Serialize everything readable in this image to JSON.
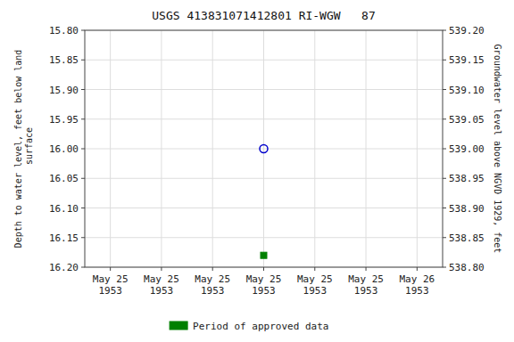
{
  "chart_data": {
    "type": "scatter",
    "title": "USGS 413831071412801 RI-WGW   87",
    "y_label": "Depth to water level, feet below land\n surface",
    "y2_label": "Groundwater level above NGVD 1929, feet",
    "categories": [
      "May 25\n1953",
      "May 25\n1953",
      "May 25\n1953",
      "May 25\n1953",
      "May 25\n1953",
      "May 25\n1953",
      "May 26\n1953"
    ],
    "series": [
      {
        "color": "#0000cc",
        "marker": "open-circle",
        "values": [
          null,
          null,
          null,
          16.0,
          null,
          null,
          null
        ]
      },
      {
        "name": "Period of approved data",
        "color": "#008000",
        "marker": "square",
        "values": [
          null,
          null,
          null,
          16.18,
          null,
          null,
          null
        ]
      }
    ],
    "ylim": [
      16.2,
      15.8
    ],
    "yticks": [
      {
        "value": 15.8,
        "label": "15.80"
      },
      {
        "value": 15.85,
        "label": "15.85"
      },
      {
        "value": 15.9,
        "label": "15.90"
      },
      {
        "value": 15.95,
        "label": "15.95"
      },
      {
        "value": 16.0,
        "label": "16.00"
      },
      {
        "value": 16.05,
        "label": "16.05"
      },
      {
        "value": 16.1,
        "label": "16.10"
      },
      {
        "value": 16.15,
        "label": "16.15"
      },
      {
        "value": 16.2,
        "label": "16.20"
      }
    ],
    "y2lim": [
      538.8,
      539.2
    ],
    "y2ticks": [
      {
        "value": 539.2,
        "label": "539.20"
      },
      {
        "value": 539.15,
        "label": "539.15"
      },
      {
        "value": 539.1,
        "label": "539.10"
      },
      {
        "value": 539.05,
        "label": "539.05"
      },
      {
        "value": 539.0,
        "label": "539.00"
      },
      {
        "value": 538.95,
        "label": "538.95"
      },
      {
        "value": 538.9,
        "label": "538.90"
      },
      {
        "value": 538.85,
        "label": "538.85"
      },
      {
        "value": 538.8,
        "label": "538.80"
      }
    ],
    "grid": true,
    "legend": "bottom"
  }
}
